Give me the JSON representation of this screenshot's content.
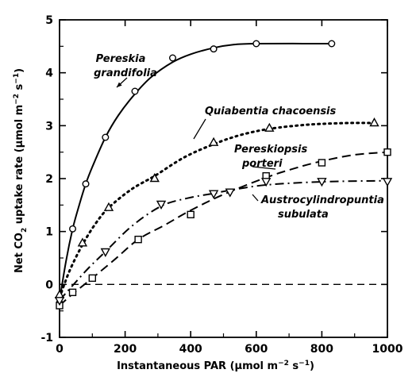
{
  "chart_data": {
    "type": "scatter",
    "xlabel": [
      "Instantaneous PAR  (μmol m",
      "−2",
      " s",
      "−1",
      ")"
    ],
    "ylabel": [
      "Net CO",
      "2",
      " uptake rate  (μmol m",
      "−2",
      " s",
      "−1",
      ")"
    ],
    "xlim": [
      0,
      1000
    ],
    "ylim": [
      -1,
      5
    ],
    "x_ticks": [
      0,
      200,
      400,
      600,
      800,
      1000
    ],
    "y_ticks": [
      -1,
      0,
      1,
      2,
      3,
      4,
      5
    ],
    "x_tick_labels": [
      "0",
      "200",
      "400",
      "600",
      "800",
      "1000"
    ],
    "y_tick_labels": [
      "-1",
      "0",
      "1",
      "2",
      "3",
      "4",
      "5"
    ],
    "zero_line": "dashed",
    "series": [
      {
        "name": [
          "Pereskia",
          "grandifolia"
        ],
        "marker": "circle",
        "line": "solid",
        "points": [
          [
            0,
            -0.35
          ],
          [
            0,
            -0.25
          ],
          [
            40,
            1.05
          ],
          [
            80,
            1.9
          ],
          [
            140,
            2.78
          ],
          [
            230,
            3.65
          ],
          [
            345,
            4.28
          ],
          [
            470,
            4.45
          ],
          [
            600,
            4.55
          ],
          [
            830,
            4.55
          ]
        ],
        "curve": [
          [
            0,
            -0.3
          ],
          [
            20,
            0.45
          ],
          [
            40,
            1.05
          ],
          [
            60,
            1.5
          ],
          [
            80,
            1.9
          ],
          [
            100,
            2.22
          ],
          [
            140,
            2.78
          ],
          [
            180,
            3.2
          ],
          [
            230,
            3.6
          ],
          [
            280,
            3.92
          ],
          [
            345,
            4.2
          ],
          [
            400,
            4.35
          ],
          [
            470,
            4.47
          ],
          [
            530,
            4.53
          ],
          [
            600,
            4.55
          ],
          [
            830,
            4.55
          ]
        ]
      },
      {
        "name": [
          "Quiabentia chacoensis"
        ],
        "marker": "triangle-up",
        "line": "dotted",
        "points": [
          [
            0,
            -0.2
          ],
          [
            70,
            0.78
          ],
          [
            150,
            1.45
          ],
          [
            290,
            2.0
          ],
          [
            470,
            2.68
          ],
          [
            640,
            2.95
          ],
          [
            960,
            3.05
          ]
        ],
        "curve": [
          [
            0,
            -0.25
          ],
          [
            30,
            0.25
          ],
          [
            70,
            0.75
          ],
          [
            110,
            1.15
          ],
          [
            150,
            1.45
          ],
          [
            220,
            1.8
          ],
          [
            290,
            2.05
          ],
          [
            380,
            2.4
          ],
          [
            470,
            2.65
          ],
          [
            550,
            2.82
          ],
          [
            640,
            2.94
          ],
          [
            760,
            3.02
          ],
          [
            880,
            3.05
          ],
          [
            960,
            3.05
          ]
        ]
      },
      {
        "name": [
          "Pereskiopsis",
          "porteri"
        ],
        "marker": "square",
        "line": "dashed",
        "points": [
          [
            0,
            -0.4
          ],
          [
            40,
            -0.15
          ],
          [
            100,
            0.12
          ],
          [
            240,
            0.85
          ],
          [
            400,
            1.32
          ],
          [
            630,
            2.05
          ],
          [
            800,
            2.3
          ],
          [
            1000,
            2.5
          ]
        ],
        "curve": [
          [
            0,
            -0.4
          ],
          [
            40,
            -0.18
          ],
          [
            100,
            0.12
          ],
          [
            170,
            0.48
          ],
          [
            240,
            0.85
          ],
          [
            320,
            1.12
          ],
          [
            400,
            1.4
          ],
          [
            500,
            1.7
          ],
          [
            630,
            2.02
          ],
          [
            720,
            2.2
          ],
          [
            800,
            2.33
          ],
          [
            900,
            2.45
          ],
          [
            1000,
            2.5
          ]
        ]
      },
      {
        "name": [
          "Austrocylindropuntia",
          "subulata"
        ],
        "marker": "triangle-down",
        "line": "dashdot",
        "points": [
          [
            0,
            -0.3
          ],
          [
            140,
            0.62
          ],
          [
            310,
            1.52
          ],
          [
            470,
            1.72
          ],
          [
            520,
            1.75
          ],
          [
            630,
            1.95
          ],
          [
            800,
            1.95
          ],
          [
            1000,
            1.95
          ]
        ],
        "curve": [
          [
            0,
            -0.3
          ],
          [
            40,
            -0.02
          ],
          [
            90,
            0.32
          ],
          [
            140,
            0.62
          ],
          [
            220,
            1.1
          ],
          [
            310,
            1.48
          ],
          [
            390,
            1.63
          ],
          [
            470,
            1.72
          ],
          [
            520,
            1.78
          ],
          [
            630,
            1.88
          ],
          [
            800,
            1.94
          ],
          [
            1000,
            1.96
          ]
        ]
      }
    ]
  }
}
